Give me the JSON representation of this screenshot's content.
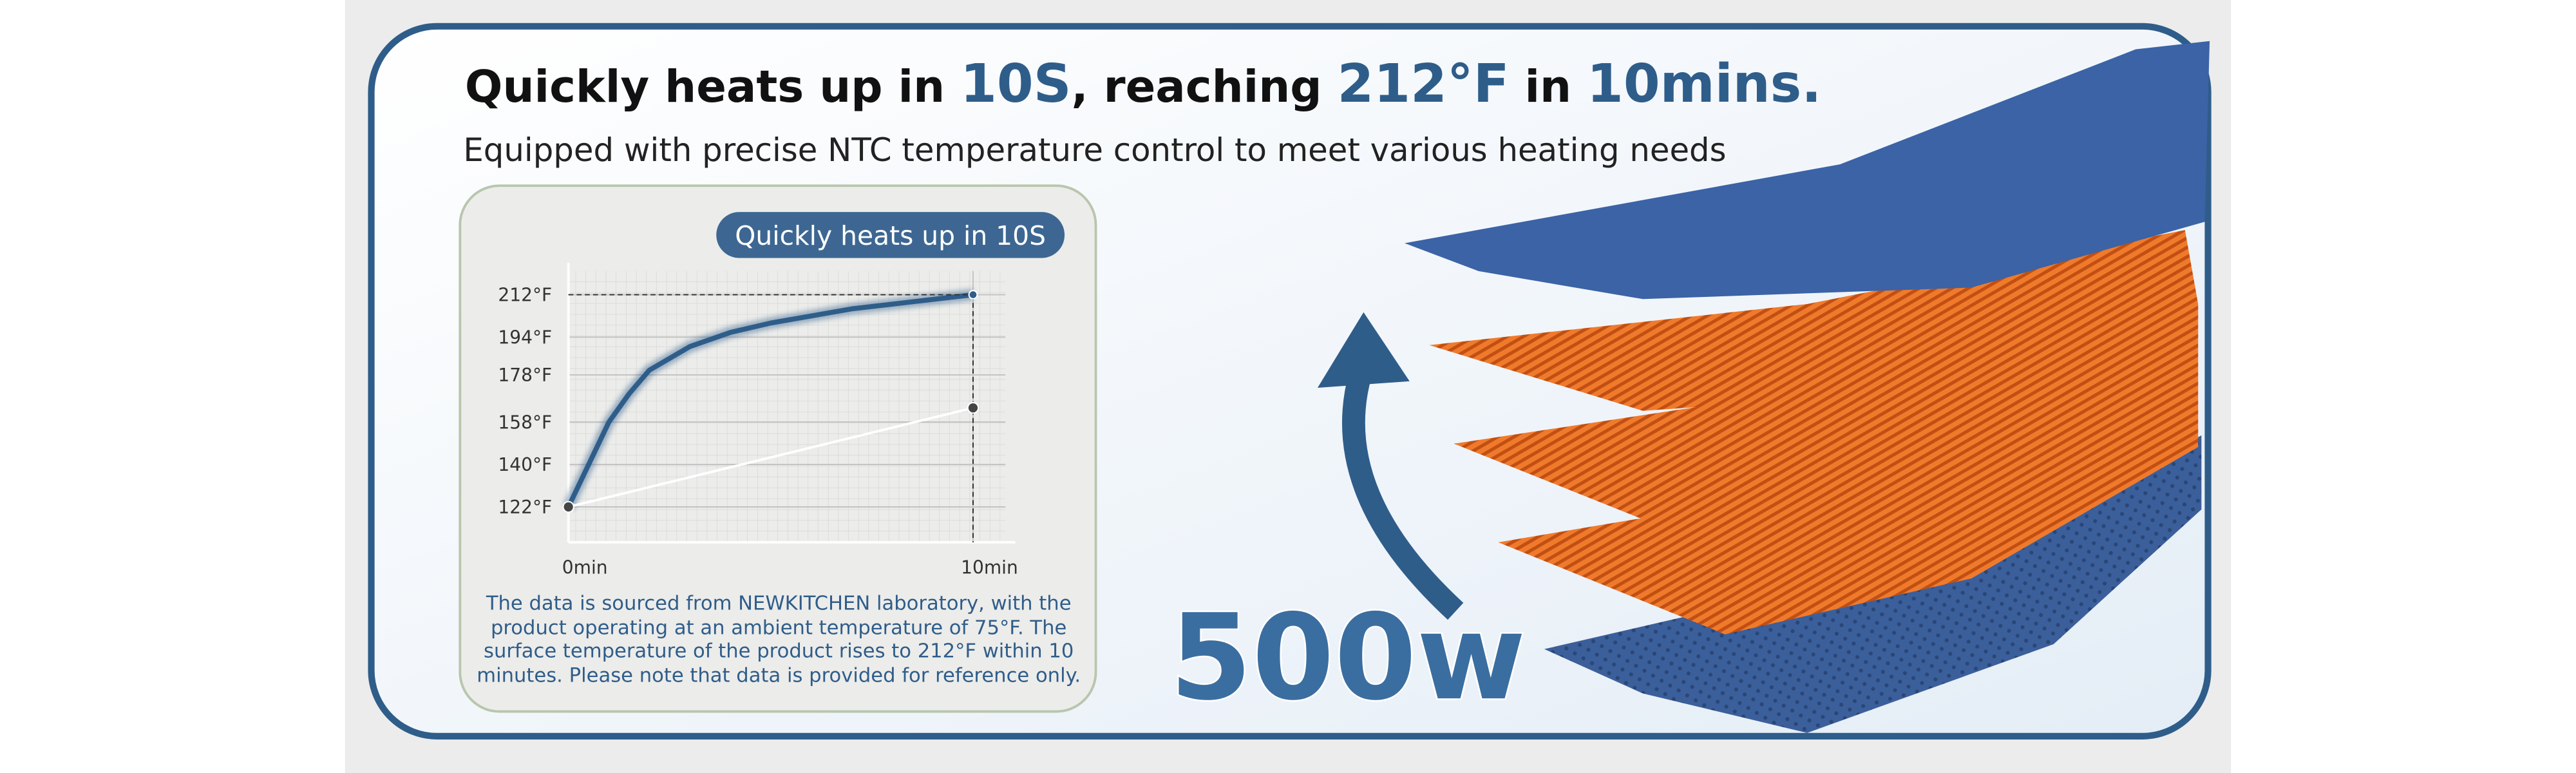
{
  "headline": {
    "parts": [
      "Quickly heats up in ",
      "10S",
      ", reaching ",
      "212°F",
      " in ",
      "10mins."
    ]
  },
  "subheadline": "Equipped with precise NTC temperature control to meet various heating needs",
  "chart_data": {
    "type": "line",
    "title": "Quickly heats up in 10S",
    "series": [
      {
        "color": "#2f5d8a",
        "x": [
          0,
          0.5,
          1,
          1.5,
          2,
          3,
          4,
          5,
          6,
          7,
          8,
          9,
          10
        ],
        "values": [
          122,
          140,
          158,
          170,
          180,
          190,
          196,
          200,
          203,
          206,
          208,
          210,
          212
        ]
      },
      {
        "color": "#ffffff",
        "x": [
          0,
          10
        ],
        "values": [
          122,
          164
        ]
      }
    ],
    "xlim": [
      0,
      10.8
    ],
    "ylim": [
      107,
      222
    ],
    "xticks": [
      {
        "value": 0,
        "label": "0min"
      },
      {
        "value": 10,
        "label": "10min"
      }
    ],
    "yticks": [
      {
        "value": 122,
        "label": "122°F"
      },
      {
        "value": 140,
        "label": "140°F"
      },
      {
        "value": 158,
        "label": "158°F"
      },
      {
        "value": 178,
        "label": "178°F"
      },
      {
        "value": 194,
        "label": "194°F"
      },
      {
        "value": 212,
        "label": "212°F"
      }
    ],
    "grid": true
  },
  "footnote": [
    "The data is sourced from NEWKITCHEN laboratory, with the",
    "product operating at an ambient temperature of 75°F. The",
    "surface temperature of the product rises to 212°F within 10",
    "minutes. Please note that data is provided for reference only."
  ],
  "power": "500w"
}
